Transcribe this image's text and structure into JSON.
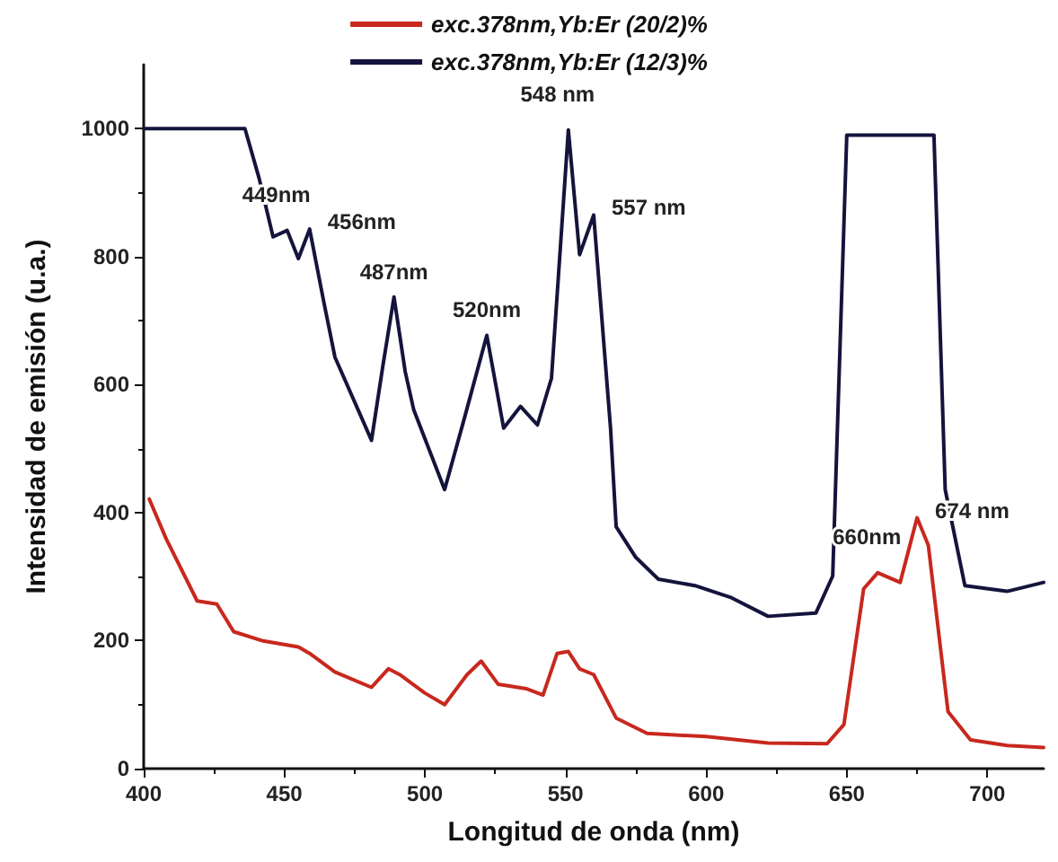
{
  "chart_data": {
    "type": "line",
    "xlabel": "Longitud de onda (nm)",
    "ylabel": "Intensidad de emisión (u.a.)",
    "xlim": [
      400,
      720
    ],
    "xticks": [
      400,
      450,
      500,
      550,
      600,
      650,
      700
    ],
    "ylim": [
      0,
      1100
    ],
    "yticks": [
      0,
      200,
      400,
      600,
      800,
      1000
    ],
    "grid": false,
    "legend": "top",
    "marker": "none",
    "line_style": "solid",
    "series": [
      {
        "name": "exc.378nm,Yb:Er (20/2)%",
        "color": "#c8281e",
        "x": [
          402,
          408,
          419,
          426,
          432,
          442,
          455,
          459,
          468,
          481,
          487,
          491,
          500,
          507,
          515,
          520,
          526,
          536,
          542,
          547,
          551,
          555,
          560,
          568,
          579,
          600,
          622,
          643,
          649,
          656,
          661,
          669,
          675,
          679,
          686,
          694,
          707,
          720
        ],
        "values": [
          421,
          359,
          262,
          257,
          214,
          200,
          190,
          180,
          151,
          127,
          156,
          147,
          118,
          100,
          147,
          168,
          132,
          125,
          115,
          180,
          183,
          156,
          147,
          79,
          55,
          50,
          40,
          39,
          69,
          281,
          306,
          291,
          392,
          349,
          89,
          45,
          36,
          33
        ]
      },
      {
        "name": "exc.378nm,Yb:Er (12/3)%",
        "color": "#14143c",
        "x": [
          400,
          436,
          441,
          446,
          451,
          455,
          459,
          464,
          468,
          481,
          485,
          489,
          493,
          496,
          507,
          514,
          522,
          528,
          534,
          540,
          545,
          551,
          555,
          560,
          566,
          568,
          575,
          583,
          596,
          609,
          622,
          639,
          645,
          650,
          681,
          685,
          692,
          707,
          720
        ],
        "values": [
          1000,
          1000,
          923,
          831,
          841,
          797,
          843,
          730,
          643,
          513,
          628,
          737,
          620,
          561,
          436,
          547,
          677,
          532,
          566,
          537,
          610,
          998,
          803,
          865,
          532,
          378,
          330,
          296,
          286,
          267,
          238,
          243,
          301,
          990,
          990,
          436,
          286,
          277,
          291
        ]
      }
    ],
    "annotations": [
      {
        "text": "449nm",
        "x": 451,
        "y": 841
      },
      {
        "text": "456nm",
        "x": 459,
        "y": 843
      },
      {
        "text": "487nm",
        "x": 489,
        "y": 737
      },
      {
        "text": "520nm",
        "x": 522,
        "y": 677
      },
      {
        "text": "548 nm",
        "x": 551,
        "y": 998
      },
      {
        "text": "557 nm",
        "x": 560,
        "y": 865
      },
      {
        "text": "660nm",
        "x": 661,
        "y": 306
      },
      {
        "text": "674 nm",
        "x": 675,
        "y": 392
      }
    ]
  }
}
